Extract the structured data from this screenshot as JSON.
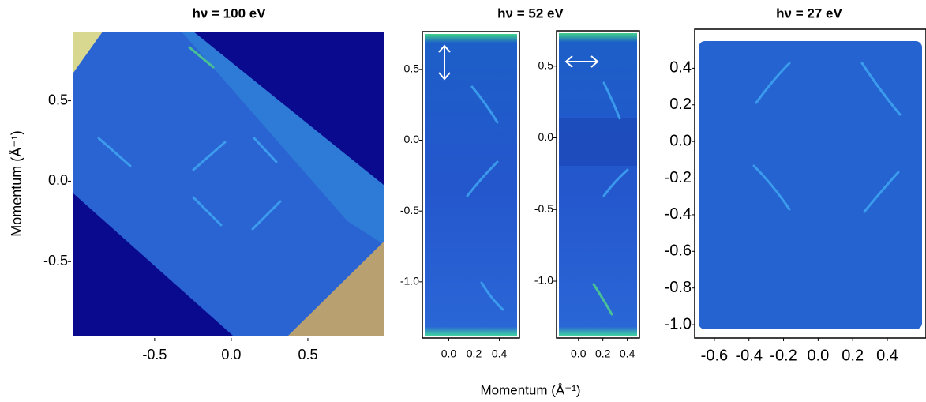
{
  "chart_data": [
    {
      "type": "heatmap",
      "title": "hν = 100 eV",
      "y_label": "Momentum (Å⁻¹)",
      "xlim": [
        -1.03,
        1.0
      ],
      "ylim": [
        -0.96,
        0.93
      ],
      "xticks": [
        -0.5,
        {
          "value": 0,
          "label": "0.0"
        },
        0.5
      ],
      "yticks": [
        0.5,
        {
          "value": 0,
          "label": "0.0"
        },
        -0.5
      ]
    },
    {
      "type": "heatmap",
      "title": "hν = 52 eV",
      "x_label": "Momentum (Å⁻¹)",
      "xlim": [
        -0.19,
        0.54
      ],
      "ylim": [
        -1.38,
        0.75
      ],
      "xticks": [
        {
          "value": 0,
          "label": "0.0"
        },
        0.2,
        0.4
      ],
      "yticks": [
        0.5,
        {
          "value": 0,
          "label": "0.0"
        },
        -0.5,
        {
          "value": -1,
          "label": "-1.0"
        }
      ]
    },
    {
      "type": "heatmap",
      "xlim": [
        -0.16,
        0.48
      ],
      "ylim": [
        -1.38,
        0.73
      ],
      "xticks": [
        {
          "value": 0,
          "label": "0.0"
        },
        0.2,
        0.4
      ],
      "yticks": [
        0.5,
        {
          "value": 0,
          "label": "0.0"
        },
        -0.5,
        {
          "value": -1,
          "label": "-1.0"
        }
      ]
    },
    {
      "type": "heatmap",
      "title": "hν = 27 eV",
      "xlim": [
        -0.7,
        0.61
      ],
      "ylim": [
        -1.06,
        0.6
      ],
      "xticks": [
        -0.6,
        -0.4,
        -0.2,
        {
          "value": 0,
          "label": "0.0"
        },
        0.2,
        0.4
      ],
      "yticks": [
        0.4,
        0.2,
        {
          "value": 0,
          "label": "0.0"
        },
        -0.2,
        -0.4,
        -0.6,
        -0.8,
        {
          "value": -1,
          "label": "-1.0"
        }
      ]
    }
  ]
}
